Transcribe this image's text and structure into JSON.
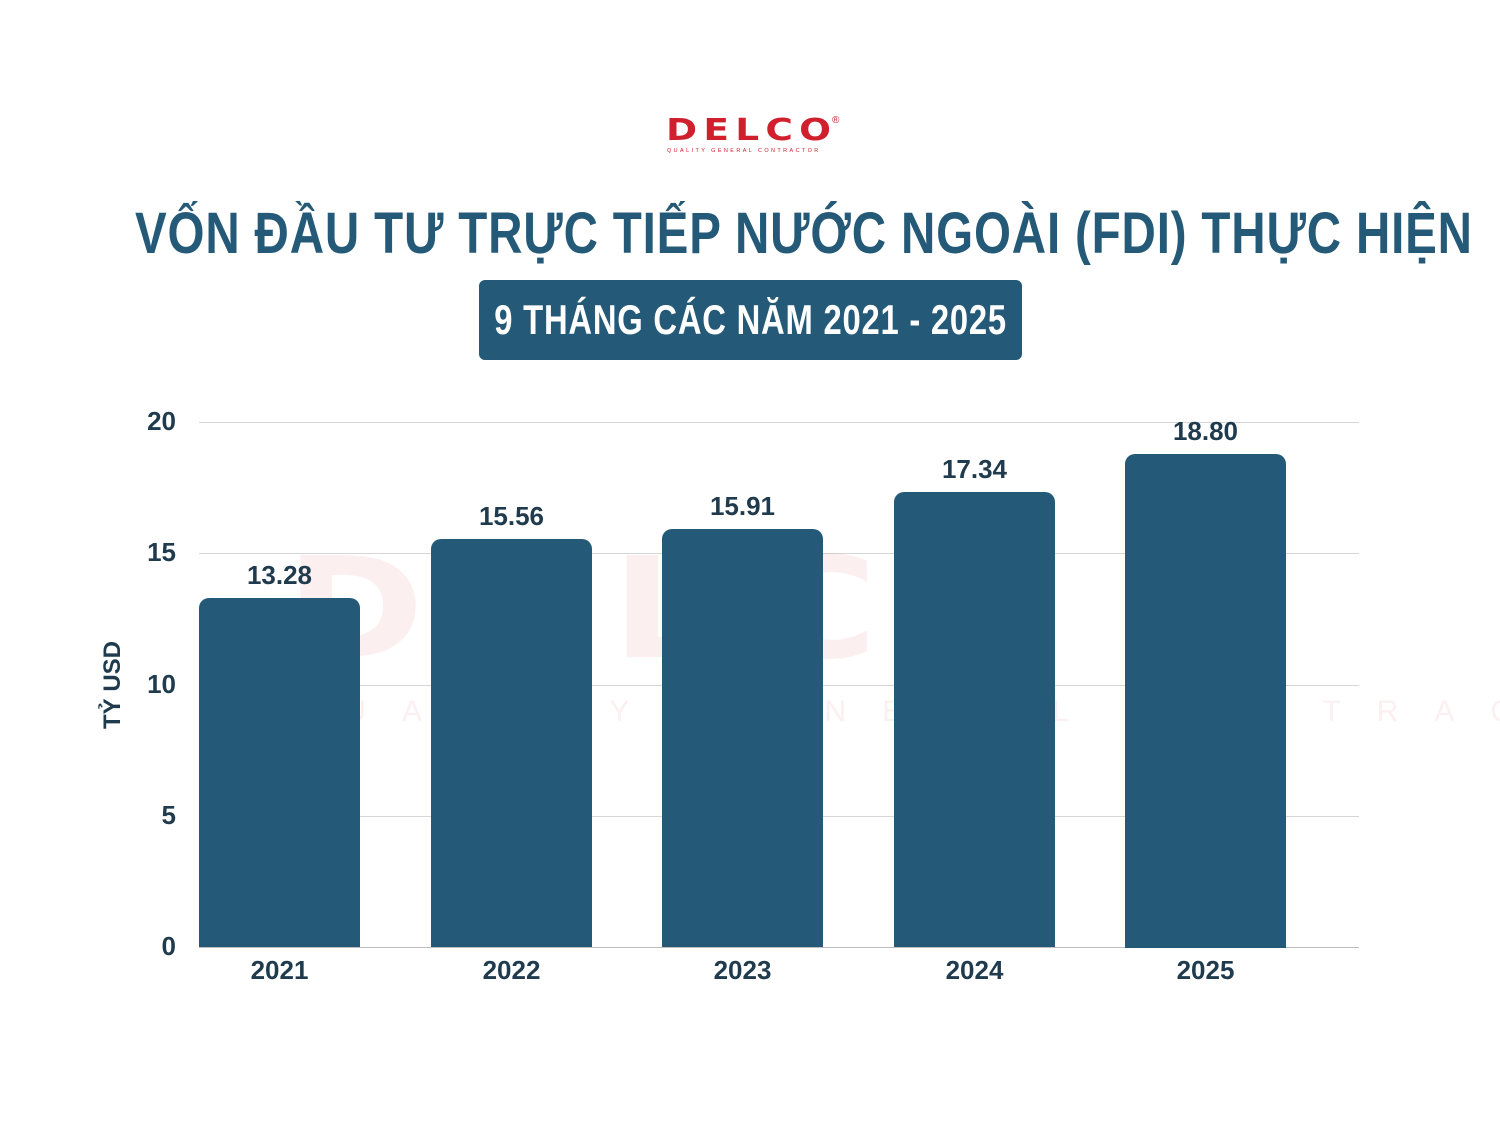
{
  "logo": {
    "word": "DELCO",
    "registered": "®",
    "tagline": "QUALITY GENERAL CONTRACTOR",
    "color": "#d0202e"
  },
  "header": {
    "title": "VỐN ĐẦU TƯ TRỰC TIẾP NƯỚC NGOÀI (FDI) THỰC HIỆN",
    "subtitle": "9 THÁNG CÁC NĂM 2021 - 2025"
  },
  "colors": {
    "bar": "#245a78",
    "title": "#245a78",
    "text": "#1f3b4d"
  },
  "chart_data": {
    "type": "bar",
    "title": "VỐN ĐẦU TƯ TRỰC TIẾP NƯỚC NGOÀI (FDI) THỰC HIỆN",
    "subtitle": "9 THÁNG CÁC NĂM 2021 - 2025",
    "categories": [
      "2021",
      "2022",
      "2023",
      "2024",
      "2025"
    ],
    "values": [
      13.28,
      15.56,
      15.91,
      17.34,
      18.8
    ],
    "value_labels": [
      "13.28",
      "15.56",
      "15.91",
      "17.34",
      "18.80"
    ],
    "xlabel": "",
    "ylabel": "TỶ USD",
    "ylim": [
      0,
      20
    ],
    "yticks": [
      "0",
      "5",
      "10",
      "15",
      "20"
    ],
    "grid": true,
    "legend": null,
    "data_labels": true,
    "watermark": "DELCO QUALITY GENERAL CONTRACTOR"
  }
}
